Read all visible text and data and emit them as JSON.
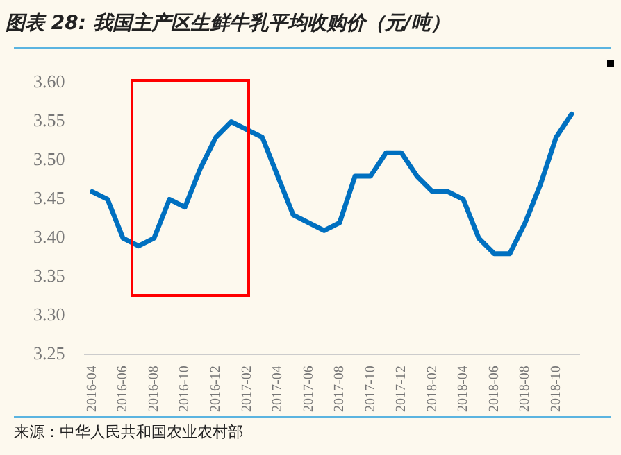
{
  "chart_data": {
    "type": "line",
    "title": "图表 28: 我国主产区生鲜牛乳平均收购价（元/吨）",
    "categories": [
      "2016-04",
      null,
      "2016-06",
      null,
      "2016-08",
      null,
      "2016-10",
      null,
      "2016-12",
      null,
      "2017-02",
      null,
      "2017-04",
      null,
      "2017-06",
      null,
      "2017-08",
      null,
      "2017-10",
      null,
      "2017-12",
      null,
      "2018-02",
      null,
      "2018-04",
      null,
      "2018-06",
      null,
      "2018-08",
      null,
      "2018-10",
      null
    ],
    "series": [
      {
        "color": "#0070c0",
        "values": [
          3.46,
          3.45,
          3.4,
          3.39,
          3.4,
          3.45,
          3.44,
          3.49,
          3.53,
          3.55,
          3.54,
          3.53,
          3.48,
          3.43,
          3.42,
          3.41,
          3.42,
          3.48,
          3.48,
          3.51,
          3.51,
          3.48,
          3.46,
          3.46,
          3.45,
          3.4,
          3.38,
          3.38,
          3.42,
          3.47,
          3.53,
          3.56
        ]
      }
    ],
    "ylim": [
      3.25,
      3.6
    ],
    "yticks": [
      {
        "value": 3.25,
        "label": "3.25"
      },
      {
        "value": 3.3,
        "label": "3.30"
      },
      {
        "value": 3.35,
        "label": "3.35"
      },
      {
        "value": 3.4,
        "label": "3.40"
      },
      {
        "value": 3.45,
        "label": "3.45"
      },
      {
        "value": 3.5,
        "label": "3.50"
      },
      {
        "value": 3.55,
        "label": "3.55"
      },
      {
        "value": 3.6,
        "label": "3.60"
      }
    ],
    "grid": false,
    "legend": false,
    "marker": "none",
    "line_style": "solid",
    "annotations": [
      "来源：中华人民共和国农业农村部"
    ]
  }
}
